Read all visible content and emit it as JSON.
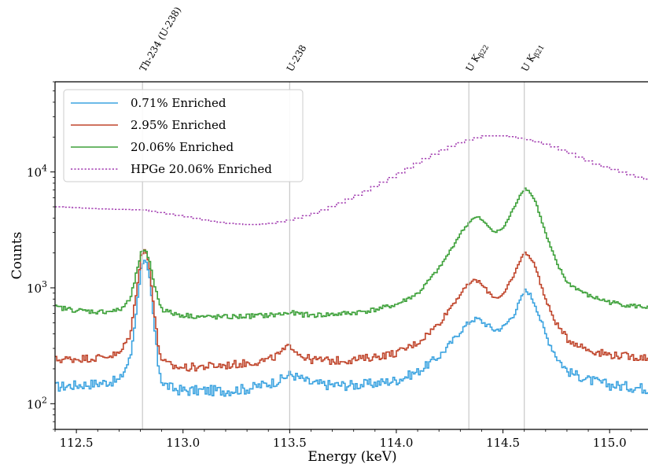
{
  "chart_data": {
    "type": "line",
    "drawstyle": "steps",
    "title": "",
    "xlabel": "Energy (keV)",
    "ylabel": "Counts",
    "xlim": [
      112.4,
      115.18
    ],
    "ylim": [
      60,
      60000
    ],
    "yscale": "log",
    "grid": false,
    "legend_position": "top-left",
    "x_ticks": [
      112.5,
      113.0,
      113.5,
      114.0,
      114.5,
      115.0
    ],
    "x_tick_labels": [
      "112.5",
      "113.0",
      "113.5",
      "114.0",
      "114.5",
      "115.0"
    ],
    "y_ticks": [
      100,
      1000,
      10000
    ],
    "y_tick_labels": [
      {
        "base": "10",
        "exp": "2"
      },
      {
        "base": "10",
        "exp": "3"
      },
      {
        "base": "10",
        "exp": "4"
      }
    ],
    "annotations": [
      {
        "x": 112.81,
        "label": "Th-234 (U-238)"
      },
      {
        "x": 113.5,
        "label": "U-238"
      },
      {
        "x": 114.34,
        "label": "U Kβ22",
        "main": "U K",
        "sub": "β22"
      },
      {
        "x": 114.6,
        "label": "U Kβ21",
        "main": "U K",
        "sub": "β21"
      }
    ],
    "series": [
      {
        "name": "0.71% Enriched",
        "color": "#3ba3e0",
        "style": "solid",
        "x": [
          112.4,
          112.5,
          112.6,
          112.7,
          112.75,
          112.78,
          112.8,
          112.82,
          112.84,
          112.86,
          112.88,
          112.9,
          112.95,
          113.0,
          113.1,
          113.2,
          113.3,
          113.4,
          113.45,
          113.5,
          113.55,
          113.6,
          113.7,
          113.8,
          113.9,
          114.0,
          114.1,
          114.2,
          114.25,
          114.3,
          114.35,
          114.38,
          114.42,
          114.46,
          114.5,
          114.55,
          114.58,
          114.6,
          114.62,
          114.65,
          114.7,
          114.75,
          114.8,
          114.9,
          115.0,
          115.1,
          115.18
        ],
        "y": [
          140,
          145,
          150,
          160,
          250,
          700,
          1500,
          1750,
          1200,
          500,
          220,
          150,
          135,
          130,
          130,
          130,
          135,
          150,
          160,
          180,
          165,
          150,
          145,
          145,
          150,
          160,
          190,
          260,
          330,
          430,
          530,
          540,
          480,
          430,
          460,
          600,
          800,
          950,
          900,
          700,
          380,
          250,
          190,
          160,
          145,
          140,
          135
        ]
      },
      {
        "name": "2.95% Enriched",
        "color": "#c0452b",
        "style": "solid",
        "x": [
          112.4,
          112.5,
          112.6,
          112.7,
          112.75,
          112.78,
          112.8,
          112.82,
          112.84,
          112.86,
          112.88,
          112.9,
          112.95,
          113.0,
          113.1,
          113.2,
          113.3,
          113.4,
          113.45,
          113.5,
          113.55,
          113.6,
          113.7,
          113.8,
          113.9,
          114.0,
          114.1,
          114.2,
          114.25,
          114.3,
          114.35,
          114.38,
          114.42,
          114.46,
          114.5,
          114.55,
          114.58,
          114.6,
          114.62,
          114.65,
          114.7,
          114.75,
          114.8,
          114.9,
          115.0,
          115.1,
          115.18
        ],
        "y": [
          240,
          245,
          250,
          270,
          400,
          1000,
          1900,
          2150,
          1500,
          650,
          320,
          230,
          210,
          205,
          210,
          215,
          225,
          240,
          270,
          320,
          260,
          240,
          235,
          240,
          255,
          275,
          340,
          500,
          680,
          900,
          1150,
          1150,
          950,
          820,
          880,
          1300,
          1800,
          2000,
          1900,
          1500,
          750,
          480,
          360,
          290,
          265,
          255,
          250
        ]
      },
      {
        "name": "20.06% Enriched",
        "color": "#3ea13a",
        "style": "solid",
        "x": [
          112.4,
          112.5,
          112.6,
          112.7,
          112.75,
          112.78,
          112.8,
          112.82,
          112.84,
          112.86,
          112.88,
          112.9,
          112.95,
          113.0,
          113.1,
          113.2,
          113.3,
          113.4,
          113.45,
          113.5,
          113.55,
          113.6,
          113.7,
          113.8,
          113.9,
          114.0,
          114.1,
          114.2,
          114.25,
          114.3,
          114.35,
          114.38,
          114.42,
          114.46,
          114.5,
          114.55,
          114.58,
          114.6,
          114.62,
          114.65,
          114.7,
          114.75,
          114.8,
          114.9,
          115.0,
          115.1,
          115.18
        ],
        "y": [
          680,
          640,
          620,
          640,
          800,
          1400,
          2000,
          2100,
          1700,
          1100,
          800,
          650,
          600,
          580,
          560,
          560,
          570,
          580,
          590,
          610,
          590,
          580,
          590,
          610,
          650,
          720,
          900,
          1500,
          2100,
          3000,
          3900,
          4100,
          3500,
          3000,
          3300,
          5000,
          6500,
          7200,
          6800,
          5500,
          2800,
          1600,
          1100,
          850,
          750,
          700,
          680
        ]
      },
      {
        "name": "HPGe 20.06% Enriched",
        "color": "#a23cb0",
        "style": "dotted",
        "x": [
          112.4,
          112.6,
          112.8,
          112.9,
          113.0,
          113.1,
          113.2,
          113.3,
          113.4,
          113.5,
          113.6,
          113.7,
          113.8,
          113.9,
          114.0,
          114.1,
          114.2,
          114.3,
          114.4,
          114.5,
          114.6,
          114.7,
          114.8,
          114.9,
          115.0,
          115.1,
          115.18
        ],
        "y": [
          5000,
          4800,
          4700,
          4400,
          4100,
          3800,
          3600,
          3500,
          3600,
          3900,
          4400,
          5200,
          6300,
          7800,
          9800,
          12500,
          15500,
          18500,
          20500,
          20500,
          19000,
          17000,
          14500,
          12000,
          10500,
          9200,
          8500
        ]
      }
    ]
  }
}
